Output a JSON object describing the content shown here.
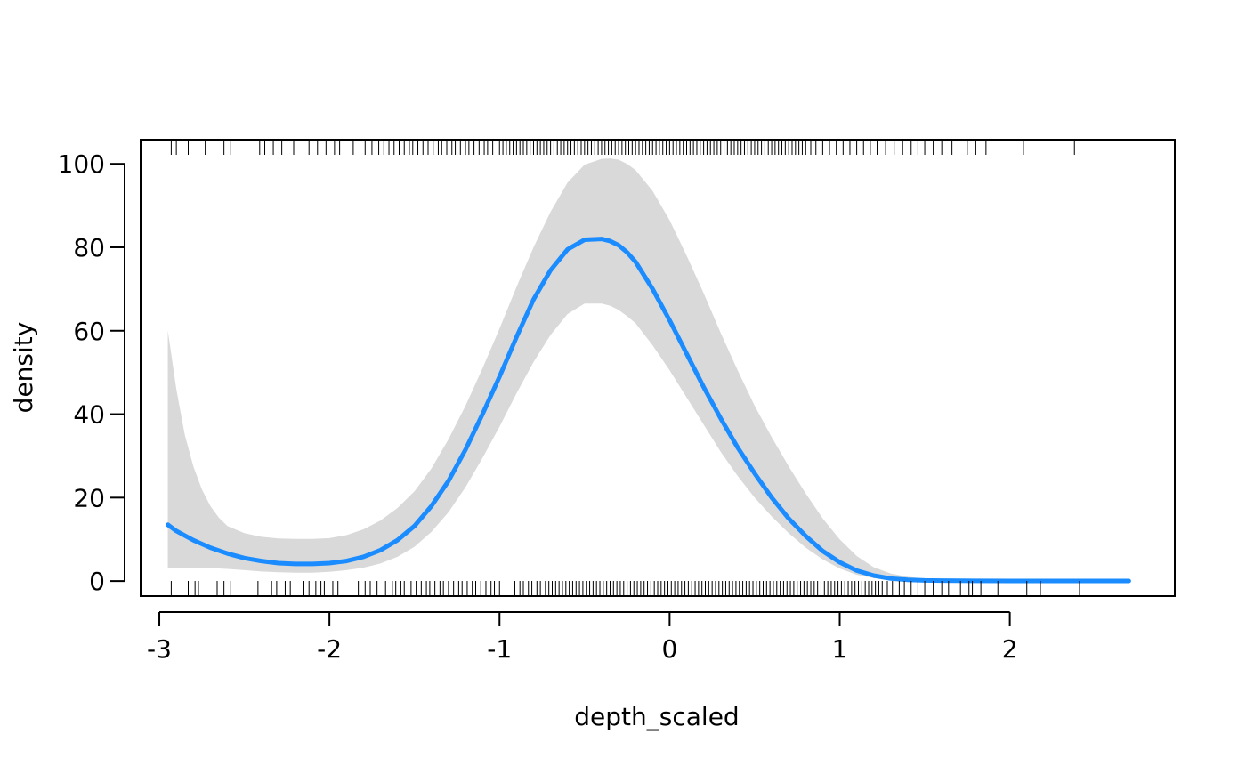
{
  "chart_data": {
    "type": "line",
    "title": "",
    "xlabel": "depth_scaled",
    "ylabel": "density",
    "xlim": [
      -3.11,
      2.97
    ],
    "ylim": [
      -3.6,
      105.8
    ],
    "x_ticks": [
      -3,
      -2,
      -1,
      0,
      1,
      2
    ],
    "y_ticks": [
      0,
      20,
      40,
      60,
      80,
      100
    ],
    "grid": false,
    "legend": "none",
    "series": [
      {
        "x": [
          -2.95,
          -2.9,
          -2.8,
          -2.7,
          -2.6,
          -2.5,
          -2.4,
          -2.3,
          -2.2,
          -2.1,
          -2.0,
          -1.9,
          -1.8,
          -1.7,
          -1.6,
          -1.5,
          -1.4,
          -1.3,
          -1.2,
          -1.1,
          -1.0,
          -0.9,
          -0.8,
          -0.7,
          -0.6,
          -0.5,
          -0.4,
          -0.35,
          -0.3,
          -0.25,
          -0.2,
          -0.1,
          0.0,
          0.1,
          0.2,
          0.3,
          0.4,
          0.5,
          0.6,
          0.7,
          0.8,
          0.9,
          1.0,
          1.1,
          1.2,
          1.3,
          1.4,
          1.5,
          1.6,
          1.8,
          2.0,
          2.2,
          2.4,
          2.6,
          2.7
        ],
        "y": [
          13.5,
          12.0,
          9.8,
          8.0,
          6.6,
          5.5,
          4.8,
          4.3,
          4.1,
          4.1,
          4.3,
          4.8,
          5.8,
          7.4,
          9.8,
          13.2,
          18.0,
          24.0,
          31.5,
          40.0,
          49.0,
          58.5,
          67.5,
          74.5,
          79.5,
          81.8,
          82.0,
          81.5,
          80.5,
          78.8,
          76.5,
          70.0,
          62.5,
          54.5,
          46.5,
          39.0,
          32.0,
          25.8,
          20.0,
          15.0,
          10.8,
          7.2,
          4.5,
          2.5,
          1.3,
          0.6,
          0.3,
          0.15,
          0.1,
          0.05,
          0.03,
          0.02,
          0.02,
          0.02,
          0.02
        ],
        "color": "#1a8cff"
      }
    ],
    "band": {
      "x": [
        -2.95,
        -2.9,
        -2.85,
        -2.8,
        -2.75,
        -2.7,
        -2.65,
        -2.6,
        -2.5,
        -2.4,
        -2.3,
        -2.2,
        -2.1,
        -2.0,
        -1.9,
        -1.8,
        -1.7,
        -1.6,
        -1.5,
        -1.4,
        -1.3,
        -1.2,
        -1.1,
        -1.0,
        -0.9,
        -0.8,
        -0.7,
        -0.6,
        -0.5,
        -0.4,
        -0.35,
        -0.3,
        -0.25,
        -0.2,
        -0.1,
        0.0,
        0.1,
        0.2,
        0.3,
        0.4,
        0.5,
        0.6,
        0.7,
        0.8,
        0.9,
        1.0,
        1.1,
        1.2,
        1.3,
        1.4,
        1.5,
        1.6,
        1.8,
        2.0,
        2.2,
        2.4,
        2.6,
        2.7
      ],
      "lower": [
        3.0,
        3.1,
        3.2,
        3.2,
        3.2,
        3.1,
        3.0,
        2.9,
        2.6,
        2.3,
        2.1,
        2.0,
        2.0,
        2.2,
        2.6,
        3.2,
        4.2,
        5.8,
        8.2,
        11.8,
        16.5,
        22.5,
        29.5,
        37.0,
        45.0,
        52.5,
        59.0,
        64.0,
        66.5,
        66.5,
        66.0,
        65.0,
        63.5,
        61.8,
        56.5,
        50.5,
        44.0,
        37.5,
        31.0,
        25.2,
        20.0,
        15.5,
        11.5,
        8.0,
        5.2,
        3.0,
        1.5,
        0.7,
        0.3,
        0.15,
        0.08,
        0.05,
        0.03,
        0.02,
        0.02,
        0.02,
        0.02,
        0.02
      ],
      "upper": [
        60.0,
        46.0,
        35.0,
        27.5,
        22.0,
        18.0,
        15.2,
        13.2,
        11.5,
        10.6,
        10.2,
        10.1,
        10.1,
        10.3,
        11.0,
        12.4,
        14.5,
        17.5,
        21.5,
        27.0,
        34.0,
        42.0,
        51.0,
        60.5,
        70.5,
        80.0,
        88.5,
        95.5,
        99.8,
        101.2,
        101.3,
        101.0,
        100.0,
        98.5,
        93.5,
        86.5,
        78.0,
        69.0,
        59.5,
        50.5,
        42.0,
        34.5,
        27.5,
        21.0,
        15.0,
        10.0,
        6.0,
        3.3,
        1.8,
        1.0,
        0.6,
        0.4,
        0.3,
        0.2,
        0.2,
        0.2,
        0.2,
        0.2
      ],
      "color": "#d9d9d9"
    },
    "rug_bottom": [
      -2.93,
      -2.83,
      -2.79,
      -2.77,
      -2.66,
      -2.62,
      -2.58,
      -2.42,
      -2.34,
      -2.31,
      -2.26,
      -2.23,
      -2.15,
      -2.12,
      -2.08,
      -2.05,
      -2.03,
      -1.98,
      -1.95,
      -1.83,
      -1.79,
      -1.76,
      -1.72,
      -1.67,
      -1.63,
      -1.61,
      -1.58,
      -1.56,
      -1.52,
      -1.49,
      -1.46,
      -1.43,
      -1.41,
      -1.38,
      -1.35,
      -1.33,
      -1.3,
      -1.27,
      -1.24,
      -1.22,
      -1.19,
      -1.16,
      -1.14,
      -1.11,
      -1.08,
      -1.05,
      -1.03,
      -1.0,
      -0.91,
      -0.88,
      -0.86,
      -0.83,
      -0.81,
      -0.78,
      -0.76,
      -0.73,
      -0.71,
      -0.69,
      -0.67,
      -0.65,
      -0.63,
      -0.61,
      -0.59,
      -0.57,
      -0.55,
      -0.53,
      -0.51,
      -0.49,
      -0.47,
      -0.45,
      -0.43,
      -0.41,
      -0.39,
      -0.37,
      -0.35,
      -0.33,
      -0.31,
      -0.29,
      -0.27,
      -0.25,
      -0.23,
      -0.21,
      -0.19,
      -0.17,
      -0.15,
      -0.13,
      -0.11,
      -0.09,
      -0.07,
      -0.05,
      -0.03,
      -0.01,
      0.01,
      0.03,
      0.05,
      0.07,
      0.09,
      0.11,
      0.13,
      0.15,
      0.17,
      0.19,
      0.21,
      0.23,
      0.25,
      0.27,
      0.29,
      0.31,
      0.33,
      0.35,
      0.37,
      0.39,
      0.41,
      0.43,
      0.45,
      0.47,
      0.49,
      0.51,
      0.53,
      0.55,
      0.57,
      0.59,
      0.61,
      0.63,
      0.65,
      0.67,
      0.69,
      0.71,
      0.73,
      0.75,
      0.77,
      0.79,
      0.81,
      0.83,
      0.85,
      0.87,
      0.89,
      0.91,
      0.93,
      0.95,
      0.97,
      0.99,
      1.01,
      1.03,
      1.05,
      1.07,
      1.09,
      1.11,
      1.13,
      1.15,
      1.17,
      1.19,
      1.21,
      1.23,
      1.25,
      1.28,
      1.31,
      1.35,
      1.38,
      1.42,
      1.46,
      1.5,
      1.55,
      1.6,
      1.64,
      1.71,
      1.76,
      1.78,
      1.83,
      1.93,
      2.1,
      2.18,
      2.41
    ],
    "rug_top": [
      -2.93,
      -2.9,
      -2.83,
      -2.73,
      -2.62,
      -2.58,
      -2.41,
      -2.38,
      -2.33,
      -2.28,
      -2.21,
      -2.12,
      -2.07,
      -2.02,
      -1.97,
      -1.94,
      -1.86,
      -1.79,
      -1.75,
      -1.71,
      -1.68,
      -1.65,
      -1.62,
      -1.59,
      -1.56,
      -1.53,
      -1.51,
      -1.48,
      -1.45,
      -1.42,
      -1.39,
      -1.36,
      -1.34,
      -1.31,
      -1.28,
      -1.26,
      -1.23,
      -1.2,
      -1.18,
      -1.15,
      -1.12,
      -1.09,
      -1.07,
      -1.04,
      -1.0,
      -0.98,
      -0.96,
      -0.94,
      -0.92,
      -0.9,
      -0.88,
      -0.86,
      -0.84,
      -0.82,
      -0.8,
      -0.78,
      -0.76,
      -0.74,
      -0.72,
      -0.7,
      -0.68,
      -0.66,
      -0.64,
      -0.62,
      -0.6,
      -0.58,
      -0.56,
      -0.54,
      -0.52,
      -0.5,
      -0.48,
      -0.46,
      -0.44,
      -0.42,
      -0.4,
      -0.38,
      -0.36,
      -0.34,
      -0.32,
      -0.3,
      -0.28,
      -0.26,
      -0.24,
      -0.22,
      -0.2,
      -0.18,
      -0.16,
      -0.14,
      -0.12,
      -0.1,
      -0.08,
      -0.06,
      -0.04,
      -0.02,
      0.0,
      0.02,
      0.04,
      0.06,
      0.08,
      0.1,
      0.12,
      0.14,
      0.16,
      0.18,
      0.2,
      0.22,
      0.24,
      0.26,
      0.28,
      0.3,
      0.32,
      0.34,
      0.36,
      0.38,
      0.4,
      0.42,
      0.44,
      0.46,
      0.48,
      0.5,
      0.52,
      0.54,
      0.56,
      0.58,
      0.6,
      0.62,
      0.64,
      0.66,
      0.68,
      0.7,
      0.72,
      0.74,
      0.76,
      0.78,
      0.8,
      0.83,
      0.86,
      0.9,
      0.94,
      0.98,
      1.02,
      1.06,
      1.1,
      1.14,
      1.18,
      1.22,
      1.27,
      1.32,
      1.37,
      1.42,
      1.46,
      1.5,
      1.55,
      1.6,
      1.66,
      1.75,
      1.8,
      1.86,
      2.08,
      2.38
    ]
  }
}
